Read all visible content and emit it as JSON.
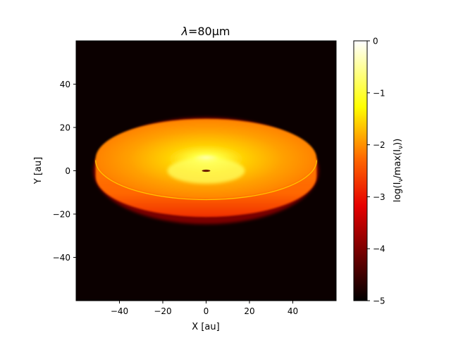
{
  "chart_data": {
    "type": "heatmap",
    "title_prefix": "λ",
    "title_value": "=80",
    "title_unit": "μm",
    "xlabel": "X [au]",
    "ylabel": "Y [au]",
    "xlim": [
      -60,
      60
    ],
    "ylim": [
      -60,
      60
    ],
    "xticks": [
      -40,
      -20,
      0,
      20,
      40
    ],
    "yticks": [
      -40,
      -20,
      0,
      20,
      40
    ],
    "xtick_labels": [
      "−40",
      "−20",
      "0",
      "20",
      "40"
    ],
    "ytick_labels": [
      "−40",
      "−20",
      "0",
      "20",
      "40"
    ],
    "colorbar": {
      "label": "log(I_ν/max(I_ν))",
      "label_parts": [
        "log(I",
        "ν",
        "/max(I",
        "ν",
        "))"
      ],
      "range": [
        -5,
        0
      ],
      "ticks": [
        0,
        -1,
        -2,
        -3,
        -4,
        -5
      ],
      "tick_labels": [
        "0",
        "−1",
        "−2",
        "−3",
        "−4",
        "−5"
      ],
      "colormap": "hot"
    },
    "background_value": -5,
    "disk": {
      "center": [
        0,
        0
      ],
      "outer_radius_x": 51,
      "top_outer_y": 24,
      "bottom_outer_y": -24,
      "mid_rim_y": -13,
      "rim_side_depth": 8,
      "peak_value": -0.7,
      "outer_value": -2.6,
      "rim_value": -2.1,
      "central_hole_value": -4.2
    },
    "colors": {
      "black": "#0b0000",
      "dark_red": "#6e0000",
      "red": "#e60000",
      "orange": "#ff6a00",
      "amber": "#ff9e00",
      "yellow": "#ffff00",
      "white": "#ffffff"
    }
  }
}
